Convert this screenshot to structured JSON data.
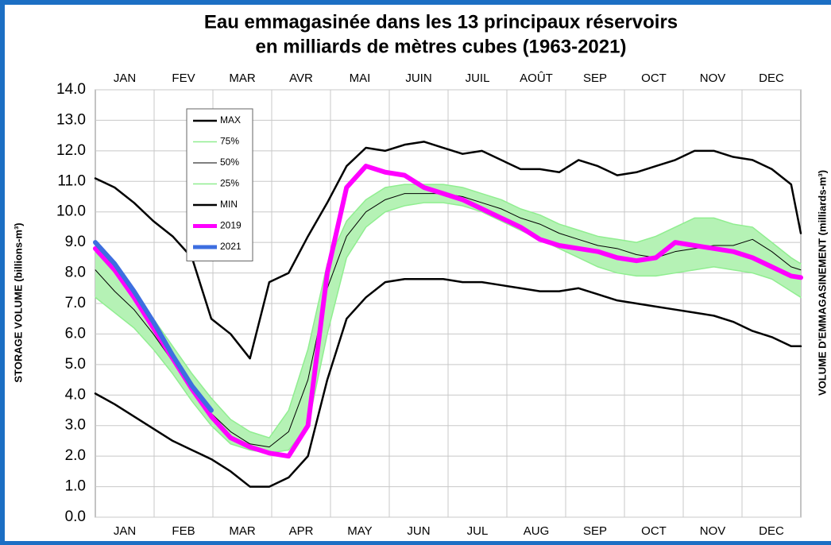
{
  "chart_data": {
    "type": "line",
    "title": [
      "Eau emmagasinée dans les 13 principaux réservoirs",
      "en milliards de mètres cubes (1963-2021)"
    ],
    "y_label": "STORAGE VOLUME (billions-m³)",
    "y2_label": "VOLUME D'EMMAGASINEMENT (milliards-m³)",
    "categories": [
      "JAN",
      "FEB",
      "MAR",
      "APR",
      "MAY",
      "JUN",
      "JUL",
      "AUG",
      "SEP",
      "OCT",
      "NOV",
      "DEC"
    ],
    "categories_top": [
      "JAN",
      "FEV",
      "MAR",
      "AVR",
      "MAI",
      "JUIN",
      "JUIL",
      "AOÛT",
      "SEP",
      "OCT",
      "NOV",
      "DEC"
    ],
    "xlim": [
      0,
      365
    ],
    "x": [
      0,
      10,
      20,
      30,
      40,
      50,
      60,
      70,
      80,
      90,
      100,
      110,
      120,
      130,
      140,
      150,
      160,
      170,
      180,
      190,
      200,
      210,
      220,
      230,
      240,
      250,
      260,
      270,
      280,
      290,
      300,
      310,
      320,
      330,
      340,
      350,
      360,
      365
    ],
    "ylim": [
      0,
      14
    ],
    "yticks": [
      {
        "value": 0,
        "label": "0.0"
      },
      {
        "value": 1,
        "label": "1.0"
      },
      {
        "value": 2,
        "label": "2.0"
      },
      {
        "value": 3,
        "label": "3.0"
      },
      {
        "value": 4,
        "label": "4.0"
      },
      {
        "value": 5,
        "label": "5.0"
      },
      {
        "value": 6,
        "label": "6.0"
      },
      {
        "value": 7,
        "label": "7.0"
      },
      {
        "value": 8,
        "label": "8.0"
      },
      {
        "value": 9,
        "label": "9.0"
      },
      {
        "value": 10,
        "label": "10.0"
      },
      {
        "value": 11,
        "label": "11.0"
      },
      {
        "value": 12,
        "label": "12.0"
      },
      {
        "value": 13,
        "label": "13.0"
      },
      {
        "value": 14,
        "label": "14.0"
      }
    ],
    "grid": true,
    "series": [
      {
        "name": "MAX",
        "color": "#000000",
        "values": [
          11.1,
          10.8,
          10.3,
          9.7,
          9.2,
          8.5,
          6.5,
          6.0,
          5.2,
          7.7,
          8.0,
          9.2,
          10.3,
          11.5,
          12.1,
          12.0,
          12.2,
          12.3,
          12.1,
          11.9,
          12.0,
          11.7,
          11.4,
          11.4,
          11.3,
          11.7,
          11.5,
          11.2,
          11.3,
          11.5,
          11.7,
          12.0,
          12.0,
          11.8,
          11.7,
          11.4,
          10.9,
          9.3
        ]
      },
      {
        "name": "75%",
        "color": "#90ee90",
        "values": [
          8.7,
          8.0,
          7.3,
          6.5,
          5.6,
          4.7,
          3.9,
          3.2,
          2.8,
          2.6,
          3.5,
          5.5,
          8.3,
          9.7,
          10.4,
          10.8,
          10.9,
          10.9,
          10.9,
          10.8,
          10.6,
          10.4,
          10.1,
          9.9,
          9.6,
          9.4,
          9.2,
          9.1,
          9.0,
          9.2,
          9.5,
          9.8,
          9.8,
          9.6,
          9.5,
          9.0,
          8.5,
          8.3
        ]
      },
      {
        "name": "50%",
        "color": "#000000",
        "values": [
          8.1,
          7.4,
          6.8,
          6.0,
          5.1,
          4.2,
          3.4,
          2.8,
          2.4,
          2.3,
          2.8,
          4.5,
          7.5,
          9.2,
          10.0,
          10.4,
          10.6,
          10.6,
          10.6,
          10.5,
          10.3,
          10.1,
          9.8,
          9.6,
          9.3,
          9.1,
          8.9,
          8.8,
          8.6,
          8.5,
          8.7,
          8.8,
          8.9,
          8.9,
          9.1,
          8.7,
          8.2,
          8.1
        ]
      },
      {
        "name": "25%",
        "color": "#90ee90",
        "values": [
          7.2,
          6.7,
          6.2,
          5.5,
          4.7,
          3.8,
          3.0,
          2.4,
          2.2,
          2.1,
          2.2,
          3.0,
          6.0,
          8.5,
          9.5,
          10.0,
          10.2,
          10.3,
          10.3,
          10.2,
          10.0,
          9.7,
          9.4,
          9.1,
          8.8,
          8.5,
          8.2,
          8.0,
          7.9,
          7.9,
          8.0,
          8.1,
          8.2,
          8.1,
          8.0,
          7.8,
          7.4,
          7.2
        ]
      },
      {
        "name": "MIN",
        "color": "#000000",
        "values": [
          4.05,
          3.7,
          3.3,
          2.9,
          2.5,
          2.2,
          1.9,
          1.5,
          1.0,
          1.0,
          1.3,
          2.0,
          4.5,
          6.5,
          7.2,
          7.7,
          7.8,
          7.8,
          7.8,
          7.7,
          7.7,
          7.6,
          7.5,
          7.4,
          7.4,
          7.5,
          7.3,
          7.1,
          7.0,
          6.9,
          6.8,
          6.7,
          6.6,
          6.4,
          6.1,
          5.9,
          5.6,
          5.6
        ]
      },
      {
        "name": "2019",
        "color": "#ff00ff",
        "values": [
          8.8,
          8.1,
          7.2,
          6.2,
          5.2,
          4.2,
          3.3,
          2.6,
          2.3,
          2.1,
          2.0,
          3.0,
          8.0,
          10.8,
          11.5,
          11.3,
          11.2,
          10.8,
          10.6,
          10.4,
          10.1,
          9.8,
          9.5,
          9.1,
          8.9,
          8.8,
          8.7,
          8.5,
          8.4,
          8.5,
          9.0,
          8.9,
          8.8,
          8.7,
          8.5,
          8.2,
          7.9,
          7.85
        ]
      },
      {
        "name": "2021",
        "color": "#3d6ee0",
        "values": [
          9.0,
          8.3,
          7.4,
          6.4,
          5.3,
          4.3,
          3.5,
          null,
          null,
          null,
          null,
          null,
          null,
          null,
          null,
          null,
          null,
          null,
          null,
          null,
          null,
          null,
          null,
          null,
          null,
          null,
          null,
          null,
          null,
          null,
          null,
          null,
          null,
          null,
          null,
          null,
          null,
          null
        ]
      }
    ]
  }
}
